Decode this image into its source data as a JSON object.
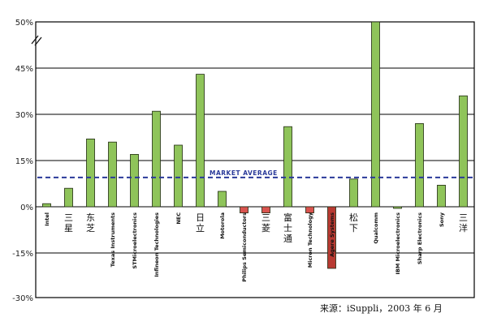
{
  "chart_data": {
    "type": "bar",
    "categories": [
      "Intel",
      "三星",
      "东芝",
      "Texas Instruments",
      "STMicroelectronics",
      "Infineon Technologies",
      "NEC",
      "日立",
      "Motorola",
      "Philips Semiconductors",
      "三菱",
      "富士通",
      "Micron Technology",
      "Agere Systems",
      "松下",
      "Qualcomm",
      "IBM Microelectronics",
      "Sharp Electronics",
      "Sony",
      "三洋"
    ],
    "values": [
      1,
      6,
      22,
      21,
      17,
      31,
      20,
      43,
      5,
      -2,
      -2,
      26,
      -2,
      -20,
      9,
      50,
      0,
      27,
      7,
      36
    ],
    "highlight_index": 13,
    "reference_line": {
      "label": "MARKET AVERAGE",
      "value": 9.5
    },
    "y_ticks": [
      "50%",
      "45%",
      "30%",
      "15%",
      "0%",
      "-15%",
      "-30%"
    ],
    "ylim": [
      -30,
      50
    ],
    "title": "",
    "xlabel": "",
    "ylabel": "",
    "grid": true,
    "axis_break": "//"
  },
  "colors": {
    "bar_fill": "#8fc45a",
    "bar_stroke": "#1f2a10",
    "negative_fill": "#d9534f",
    "highlight_fill": "#b83a32",
    "reference_line": "#2a3a9a",
    "grid": "#000000"
  },
  "source_note": "来源：iSuppli，2003 年 6 月"
}
